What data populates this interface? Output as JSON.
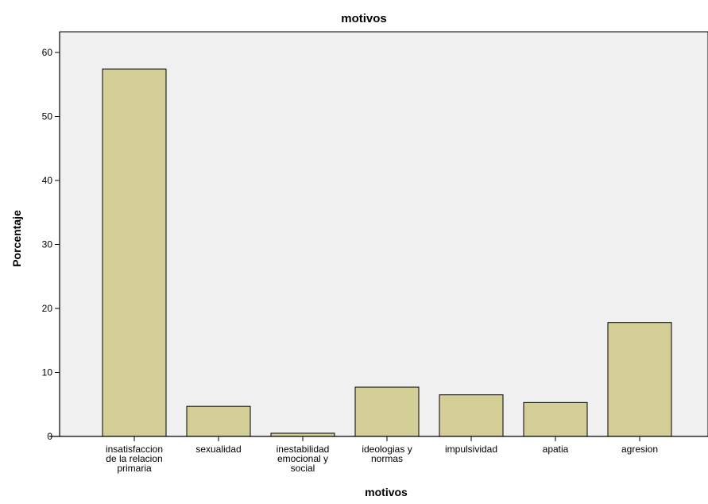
{
  "chart_data": {
    "type": "bar",
    "title": "motivos",
    "xlabel": "motivos",
    "ylabel": "Porcentaje",
    "categories": [
      "insatisfaccion de la relacion primaria",
      "sexualidad",
      "inestabilidad emocional y social",
      "ideologias y normas",
      "impulsividad",
      "apatia",
      "agresion"
    ],
    "category_label_lines": [
      [
        "insatisfaccion",
        "de la relacion",
        "primaria"
      ],
      [
        "sexualidad"
      ],
      [
        "inestabilidad",
        "emocional y",
        "social"
      ],
      [
        "ideologias y",
        "normas"
      ],
      [
        "impulsividad"
      ],
      [
        "apatia"
      ],
      [
        "agresion"
      ]
    ],
    "values": [
      57.4,
      4.7,
      0.5,
      7.7,
      6.5,
      5.3,
      17.8
    ],
    "ylim": [
      0,
      60
    ],
    "yticks": [
      0,
      10,
      20,
      30,
      40,
      50,
      60
    ],
    "grid": false,
    "legend": "none",
    "colors": {
      "bar_fill": "#d3ce96",
      "bar_stroke": "#000000",
      "plot_background": "#f0f0f0",
      "axis": "#000000"
    }
  }
}
